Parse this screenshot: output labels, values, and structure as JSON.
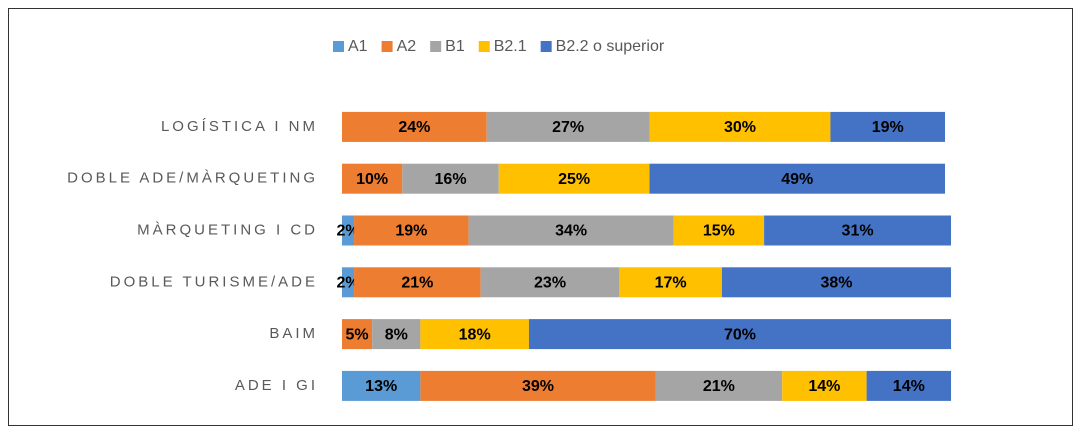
{
  "chart_data": {
    "type": "stacked-bar-horizontal",
    "categories": [
      "LOGÍSTICA I NM",
      "DOBLE ADE/MÀRQUETING",
      "MÀRQUETING I CD",
      "DOBLE TURISME/ADE",
      "BAIM",
      "ADE I GI"
    ],
    "xlim": [
      0,
      100
    ],
    "legend": "top",
    "series": [
      {
        "name": "A1",
        "color": "#5b9bd5",
        "values": [
          0,
          0,
          2,
          2,
          0,
          13
        ],
        "value_labels": [
          null,
          null,
          "2%",
          "2%",
          null,
          "13%"
        ]
      },
      {
        "name": "A2",
        "color": "#ed7d31",
        "values": [
          24,
          10,
          19,
          21,
          5,
          39
        ],
        "value_labels": [
          "24%",
          "10%",
          "19%",
          "21%",
          "5%",
          "39%"
        ]
      },
      {
        "name": "B1",
        "color": "#a5a5a5",
        "values": [
          27,
          16,
          34,
          23,
          8,
          21
        ],
        "value_labels": [
          "27%",
          "16%",
          "34%",
          "23%",
          "8%",
          "21%"
        ]
      },
      {
        "name": "B2.1",
        "color": "#ffc000",
        "values": [
          30,
          25,
          15,
          17,
          18,
          14
        ],
        "value_labels": [
          "30%",
          "25%",
          "15%",
          "17%",
          "18%",
          "14%"
        ]
      },
      {
        "name": "B2.2 o superior",
        "color": "#4472c4",
        "values": [
          19,
          49,
          31,
          38,
          70,
          14
        ],
        "value_labels": [
          "19%",
          "49%",
          "31%",
          "38%",
          "70%",
          "14%"
        ]
      }
    ]
  }
}
